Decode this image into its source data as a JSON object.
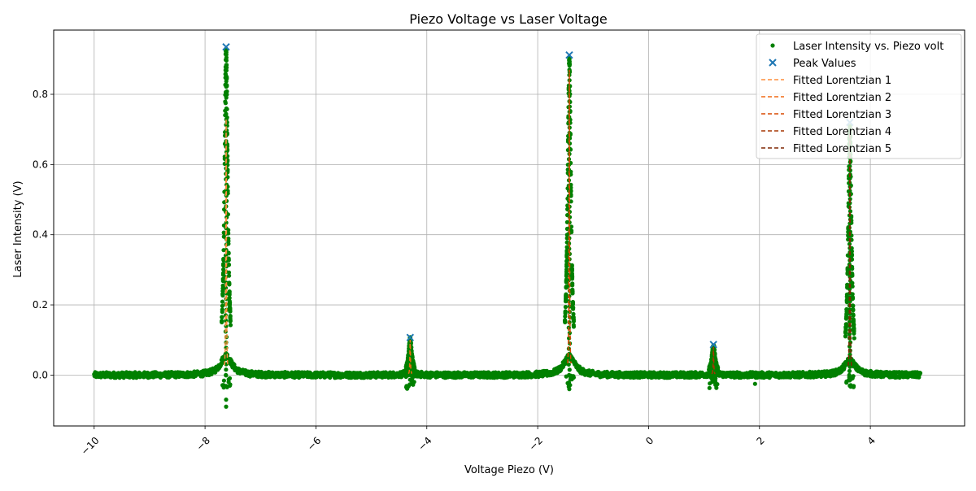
{
  "chart_data": {
    "type": "scatter",
    "title": "Piezo Voltage vs Laser Voltage",
    "xlabel": "Voltage Piezo (V)",
    "ylabel": "Laser Intensity (V)",
    "xlim": [
      -10.73,
      5.7
    ],
    "ylim": [
      -0.145,
      0.983
    ],
    "x_ticks": [
      -10,
      -8,
      -6,
      -4,
      -2,
      0,
      2,
      4
    ],
    "x_tick_labels": [
      "−10",
      "−8",
      "−6",
      "−4",
      "−2",
      "0",
      "2",
      "4"
    ],
    "y_ticks": [
      0.0,
      0.2,
      0.4,
      0.6,
      0.8
    ],
    "y_tick_labels": [
      "0.0",
      "0.2",
      "0.4",
      "0.6",
      "0.8"
    ],
    "grid": true,
    "legend_position": "top-right",
    "data_range_x": [
      -10.0,
      4.9
    ],
    "colors": {
      "scatter": "#008000",
      "peaks": "#1f77b4",
      "fits": [
        "#fd8d3c",
        "#f16913",
        "#d94801",
        "#a63603",
        "#7f2704"
      ]
    },
    "series": [
      {
        "name": "Laser Intensity vs. Piezo volt",
        "marker": "dot",
        "description_points": "dense sampled trace near 0 with sharp resonance peaks",
        "peaks": [
          {
            "center": -7.62,
            "height": 0.93,
            "width": 0.035
          },
          {
            "center": -4.3,
            "height": 0.1,
            "width": 0.035
          },
          {
            "center": -1.43,
            "height": 0.9,
            "width": 0.035
          },
          {
            "center": 1.17,
            "height": 0.08,
            "width": 0.035
          },
          {
            "center": 3.63,
            "height": 0.7,
            "width": 0.035
          }
        ]
      },
      {
        "name": "Peak Values",
        "marker": "x",
        "x": [
          -7.62,
          -4.3,
          -1.43,
          1.17,
          3.63
        ],
        "y": [
          0.935,
          0.107,
          0.912,
          0.087,
          0.72
        ]
      },
      {
        "name": "Fitted Lorentzian 1",
        "style": "dashed",
        "center": -7.62,
        "height": 0.73,
        "x_range": [
          -7.65,
          -7.59
        ]
      },
      {
        "name": "Fitted Lorentzian 2",
        "style": "dashed",
        "center": -4.3,
        "height": 0.1,
        "x_range": [
          -4.33,
          -4.27
        ]
      },
      {
        "name": "Fitted Lorentzian 3",
        "style": "dashed",
        "center": -1.43,
        "height": 0.87,
        "x_range": [
          -1.46,
          -1.4
        ]
      },
      {
        "name": "Fitted Lorentzian 4",
        "style": "dashed",
        "center": 1.17,
        "height": 0.08,
        "x_range": [
          1.14,
          1.2
        ]
      },
      {
        "name": "Fitted Lorentzian 5",
        "style": "dashed",
        "center": 3.63,
        "height": 0.69,
        "x_range": [
          3.6,
          3.66
        ]
      }
    ]
  }
}
